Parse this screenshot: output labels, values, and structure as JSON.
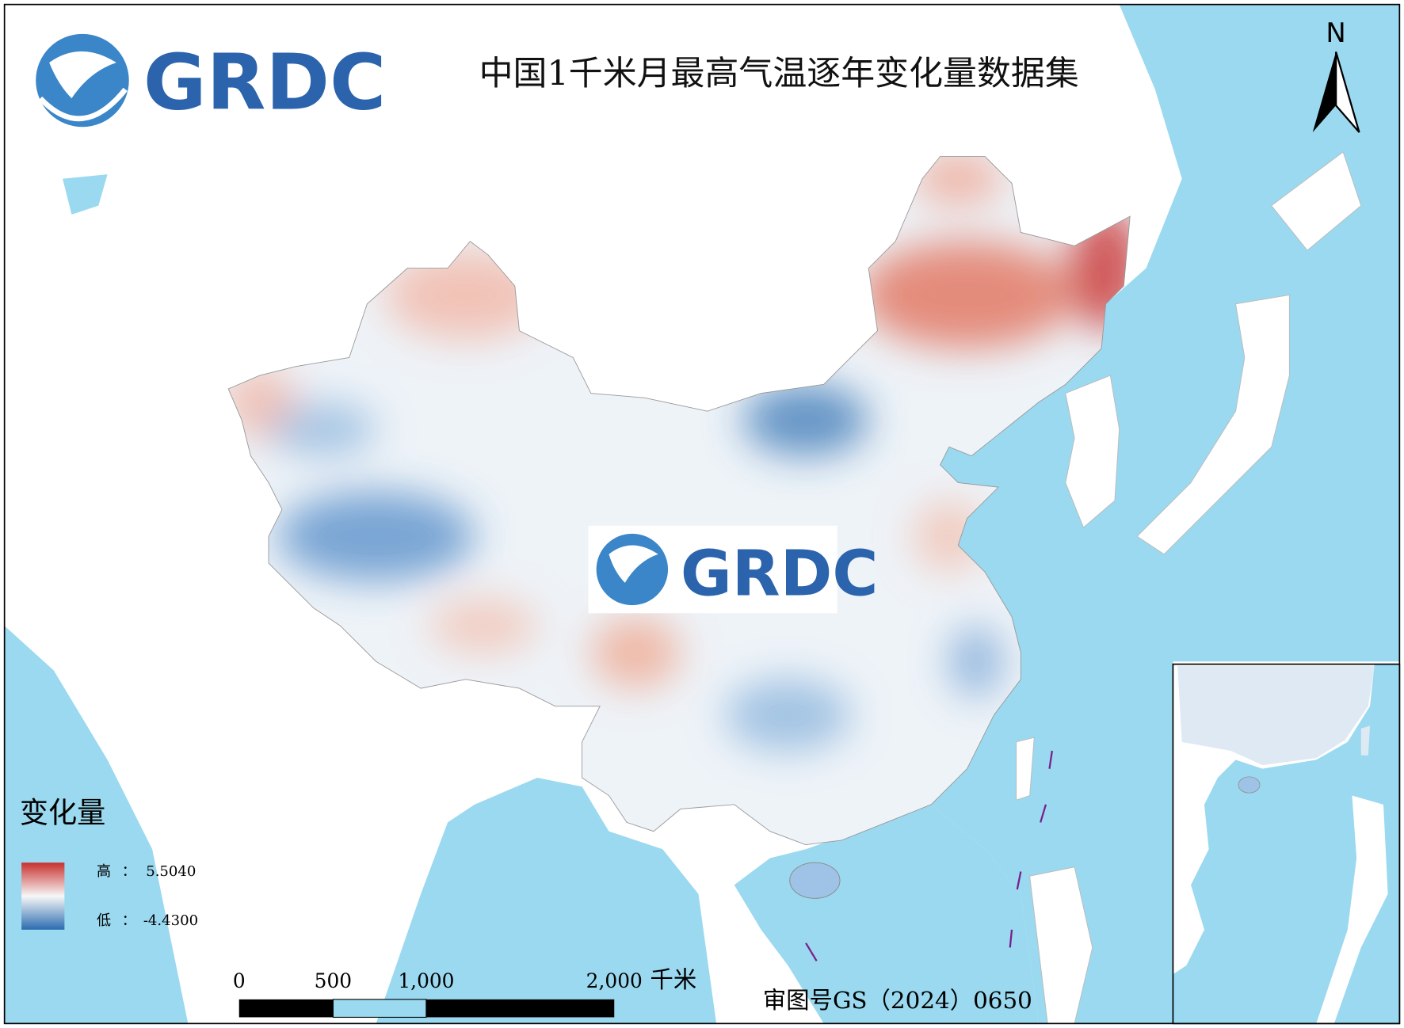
{
  "title": "中国1千米月最高气温逐年变化量数据集",
  "logo": {
    "text": "GRDC"
  },
  "watermark": {
    "text": "GRDC"
  },
  "north_arrow": {
    "label": "N"
  },
  "legend": {
    "title": "变化量",
    "high": {
      "label": "高",
      "separator": "：",
      "value": "5.5040"
    },
    "low": {
      "label": "低",
      "separator": "：",
      "value": "-4.4300"
    }
  },
  "scale_bar": {
    "labels": [
      "0",
      "500",
      "1,000",
      "2,000"
    ],
    "unit": "千米"
  },
  "approval_number": "审图号GS（2024）0650"
}
